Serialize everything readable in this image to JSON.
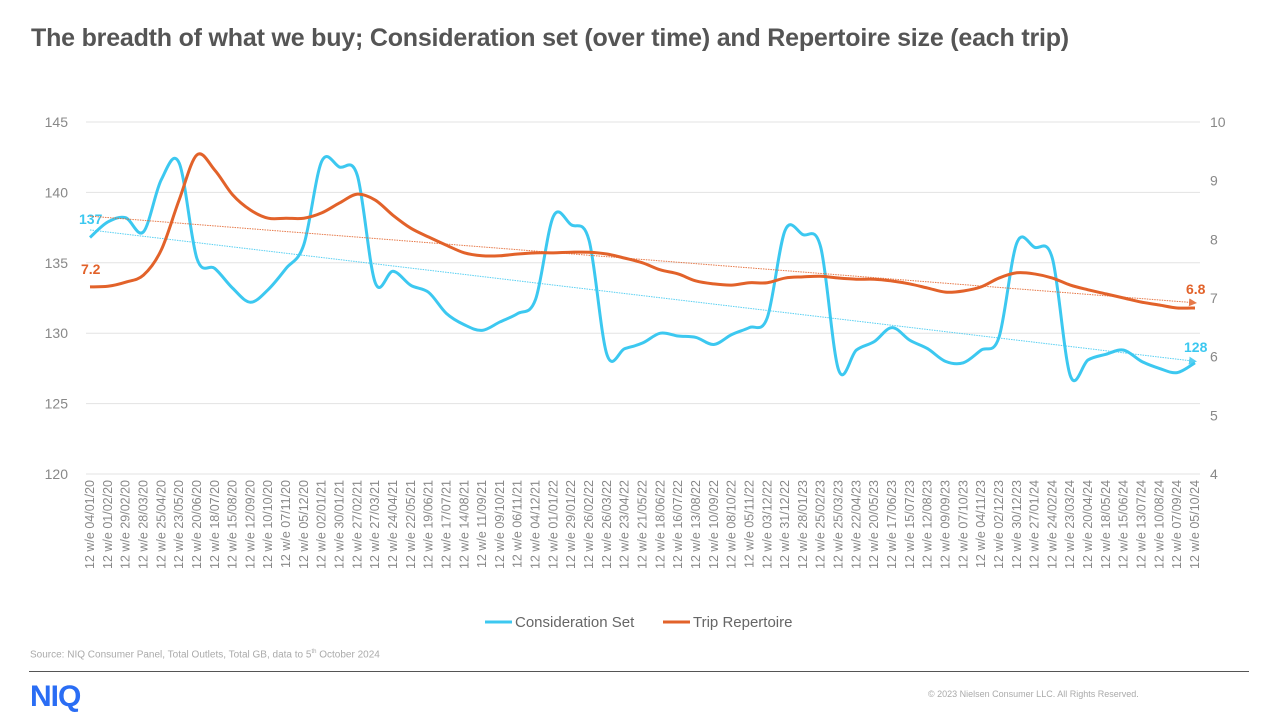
{
  "title": "The breadth of what we buy; Consideration set (over time) and Repertoire size (each trip)",
  "footer": {
    "source_prefix": "Source: NIQ Consumer Panel, Total Outlets, Total GB, data to 5",
    "source_sup": "th",
    "source_suffix": " October 2024",
    "logo": "NIQ",
    "copyright": "© 2023 Nielsen Consumer LLC. All Rights Reserved."
  },
  "chart_data": {
    "type": "line",
    "title": "",
    "colors": {
      "consideration": "#3CC8F0",
      "repertoire": "#E2622A",
      "grid": "#e3e3e3",
      "axis_text": "#888888"
    },
    "grid": true,
    "legend_position": "bottom",
    "y_left": {
      "min": 120,
      "max": 145,
      "ticks": [
        "120",
        "125",
        "130",
        "135",
        "140",
        "145"
      ]
    },
    "y_right": {
      "min": 4,
      "max": 10,
      "ticks": [
        "4",
        "5",
        "6",
        "7",
        "8",
        "9",
        "10"
      ]
    },
    "categories": [
      "12 w/e 04/01/20",
      "12 w/e 01/02/20",
      "12 w/e 29/02/20",
      "12 w/e 28/03/20",
      "12 w/e 25/04/20",
      "12 w/e 23/05/20",
      "12 w/e 20/06/20",
      "12 w/e 18/07/20",
      "12 w/e 15/08/20",
      "12 w/e 12/09/20",
      "12 w/e 10/10/20",
      "12 w/e 07/11/20",
      "12 w/e 05/12/20",
      "12 w/e 02/01/21",
      "12 w/e 30/01/21",
      "12 w/e 27/02/21",
      "12 w/e 27/03/21",
      "12 w/e 24/04/21",
      "12 w/e 22/05/21",
      "12 w/e 19/06/21",
      "12 w/e 17/07/21",
      "12 w/e 14/08/21",
      "12 w/e 11/09/21",
      "12 w/e 09/10/21",
      "12 w/e 06/11/21",
      "12 w/e 04/12/21",
      "12 w/e 01/01/22",
      "12 w/e 29/01/22",
      "12 w/e 26/02/22",
      "12 w/e 26/03/22",
      "12 w/e 23/04/22",
      "12 w/e 21/05/22",
      "12 w/e 18/06/22",
      "12 w/e 16/07/22",
      "12 w/e 13/08/22",
      "12 w/e 10/09/22",
      "12 w/e 08/10/22",
      "12 w/e 05/11/22",
      "12 w/e 03/12/22",
      "12 w/e 31/12/22",
      "12 w/e 28/01/23",
      "12 w/e 25/02/23",
      "12 w/e 25/03/23",
      "12 w/e 22/04/23",
      "12 w/e 20/05/23",
      "12 w/e 17/06/23",
      "12 w/e 15/07/23",
      "12 w/e 12/08/23",
      "12 w/e 09/09/23",
      "12 w/e 07/10/23",
      "12 w/e 04/11/23",
      "12 w/e 02/12/23",
      "12 w/e 30/12/23",
      "12 w/e 27/01/24",
      "12 w/e 24/02/24",
      "12 w/e 23/03/24",
      "12 w/e 20/04/24",
      "12 w/e 18/05/24",
      "12 w/e 15/06/24",
      "12 w/e 13/07/24",
      "12 w/e 10/08/24",
      "12 w/e 07/09/24",
      "12 w/e 05/10/24"
    ],
    "series": [
      {
        "name": "Consideration Set",
        "axis": "left",
        "trendline": true,
        "start_label": "137",
        "end_label": "128",
        "values": [
          136.8,
          137.9,
          138.2,
          137.2,
          140.9,
          142.1,
          135.3,
          134.6,
          133.2,
          132.2,
          133.1,
          134.6,
          136.3,
          142.2,
          141.8,
          141.2,
          133.6,
          134.4,
          133.4,
          132.9,
          131.4,
          130.6,
          130.2,
          130.8,
          131.4,
          132.4,
          138.3,
          137.7,
          136.6,
          128.5,
          128.9,
          129.3,
          130.0,
          129.8,
          129.7,
          129.2,
          129.9,
          130.4,
          131.1,
          137.3,
          137.0,
          136.1,
          127.4,
          128.8,
          129.4,
          130.4,
          129.5,
          128.9,
          128.0,
          127.9,
          128.8,
          129.7,
          136.4,
          136.1,
          135.3,
          127.0,
          128.1,
          128.5,
          128.8,
          128.0,
          127.5,
          127.2,
          127.9
        ]
      },
      {
        "name": "Trip Repertoire",
        "axis": "right",
        "trendline": true,
        "start_label": "7.2",
        "end_label": "6.8",
        "values": [
          7.19,
          7.2,
          7.27,
          7.39,
          7.82,
          8.67,
          9.44,
          9.18,
          8.76,
          8.5,
          8.36,
          8.36,
          8.36,
          8.45,
          8.62,
          8.77,
          8.67,
          8.41,
          8.19,
          8.04,
          7.9,
          7.77,
          7.72,
          7.72,
          7.75,
          7.77,
          7.77,
          7.78,
          7.78,
          7.75,
          7.68,
          7.6,
          7.48,
          7.41,
          7.29,
          7.24,
          7.22,
          7.26,
          7.26,
          7.34,
          7.36,
          7.37,
          7.34,
          7.32,
          7.32,
          7.29,
          7.24,
          7.17,
          7.1,
          7.12,
          7.19,
          7.34,
          7.43,
          7.41,
          7.34,
          7.22,
          7.14,
          7.07,
          7.0,
          6.93,
          6.88,
          6.83,
          6.83
        ]
      }
    ]
  }
}
